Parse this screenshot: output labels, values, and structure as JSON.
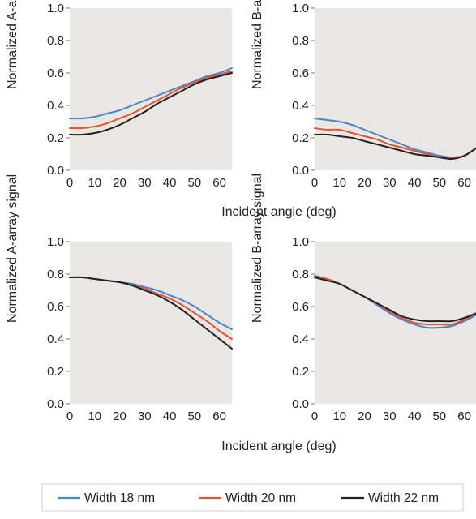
{
  "colors": {
    "plot_background": "#e9e7e4",
    "width_18": "#4a86c8",
    "width_20": "#e8532f",
    "width_22": "#222222"
  },
  "legend": {
    "items": [
      {
        "label": "Width 18 nm",
        "color": "#4a86c8"
      },
      {
        "label": "Width 20 nm",
        "color": "#e8532f"
      },
      {
        "label": "Width 22 nm",
        "color": "#222222"
      }
    ]
  },
  "chart_data": [
    {
      "id": "top-left",
      "type": "line",
      "ylabel": "Normalized A-array signal",
      "xlabel": "",
      "xticks": [
        0,
        10,
        20,
        30,
        40,
        50,
        60
      ],
      "yticks": [
        0.0,
        0.2,
        0.4,
        0.6,
        0.8,
        1.0
      ],
      "ytick_labels": [
        "0.0",
        "0.2",
        "0.4",
        "0.6",
        "0.8",
        "1.0"
      ],
      "xlim": [
        0,
        65
      ],
      "ylim": [
        0,
        1
      ],
      "grid": false,
      "x": [
        0,
        5,
        10,
        15,
        20,
        25,
        30,
        35,
        40,
        45,
        50,
        55,
        60,
        65
      ],
      "series": [
        {
          "name": "Width 18 nm",
          "values": [
            0.32,
            0.32,
            0.33,
            0.35,
            0.37,
            0.4,
            0.43,
            0.46,
            0.49,
            0.52,
            0.55,
            0.58,
            0.6,
            0.63
          ]
        },
        {
          "name": "Width 20 nm",
          "values": [
            0.26,
            0.26,
            0.27,
            0.29,
            0.32,
            0.35,
            0.39,
            0.43,
            0.47,
            0.51,
            0.54,
            0.57,
            0.59,
            0.61
          ]
        },
        {
          "name": "Width 22 nm",
          "values": [
            0.22,
            0.22,
            0.23,
            0.25,
            0.28,
            0.32,
            0.36,
            0.41,
            0.45,
            0.49,
            0.53,
            0.56,
            0.58,
            0.6
          ]
        }
      ]
    },
    {
      "id": "top-right",
      "type": "line",
      "ylabel": "Normalized B-array signal",
      "xlabel": "",
      "xticks": [
        0,
        10,
        20,
        30,
        40,
        50,
        60
      ],
      "yticks": [
        0.0,
        0.2,
        0.4,
        0.6,
        0.8,
        1.0
      ],
      "ytick_labels": [
        "0.0",
        "0.2",
        "0.4",
        "0.6",
        "0.8",
        "1.0"
      ],
      "xlim": [
        0,
        65
      ],
      "ylim": [
        0,
        1
      ],
      "grid": false,
      "x": [
        0,
        5,
        10,
        15,
        20,
        25,
        30,
        35,
        40,
        45,
        50,
        55,
        60,
        65
      ],
      "series": [
        {
          "name": "Width 18 nm",
          "values": [
            0.32,
            0.31,
            0.3,
            0.28,
            0.25,
            0.22,
            0.19,
            0.16,
            0.13,
            0.11,
            0.09,
            0.08,
            0.09,
            0.14
          ]
        },
        {
          "name": "Width 20 nm",
          "values": [
            0.26,
            0.25,
            0.25,
            0.23,
            0.21,
            0.19,
            0.16,
            0.14,
            0.12,
            0.1,
            0.08,
            0.08,
            0.09,
            0.14
          ]
        },
        {
          "name": "Width 22 nm",
          "values": [
            0.22,
            0.22,
            0.21,
            0.2,
            0.18,
            0.16,
            0.14,
            0.12,
            0.1,
            0.09,
            0.08,
            0.07,
            0.09,
            0.14
          ]
        }
      ]
    },
    {
      "id": "bottom-left",
      "type": "line",
      "ylabel": "Normalized A-array signal",
      "xlabel": "Incident angle (deg)",
      "xticks": [
        0,
        10,
        20,
        30,
        40,
        50,
        60
      ],
      "yticks": [
        0.0,
        0.2,
        0.4,
        0.6,
        0.8,
        1.0
      ],
      "ytick_labels": [
        "0.0",
        "0.2",
        "0.4",
        "0.6",
        "0.8",
        "1.0"
      ],
      "xlim": [
        0,
        65
      ],
      "ylim": [
        0,
        1
      ],
      "grid": false,
      "x": [
        0,
        5,
        10,
        15,
        20,
        25,
        30,
        35,
        40,
        45,
        50,
        55,
        60,
        65
      ],
      "series": [
        {
          "name": "Width 18 nm",
          "values": [
            0.78,
            0.78,
            0.77,
            0.76,
            0.75,
            0.74,
            0.72,
            0.7,
            0.67,
            0.64,
            0.6,
            0.55,
            0.5,
            0.46
          ]
        },
        {
          "name": "Width 20 nm",
          "values": [
            0.78,
            0.78,
            0.77,
            0.76,
            0.75,
            0.73,
            0.71,
            0.68,
            0.65,
            0.61,
            0.56,
            0.51,
            0.45,
            0.4
          ]
        },
        {
          "name": "Width 22 nm",
          "values": [
            0.78,
            0.78,
            0.77,
            0.76,
            0.75,
            0.73,
            0.7,
            0.67,
            0.63,
            0.58,
            0.52,
            0.46,
            0.4,
            0.34
          ]
        }
      ]
    },
    {
      "id": "bottom-right",
      "type": "line",
      "ylabel": "Normalized B-array signal",
      "xlabel": "Incident angle (deg)",
      "xticks": [
        0,
        10,
        20,
        30,
        40,
        50,
        60
      ],
      "yticks": [
        0.0,
        0.2,
        0.4,
        0.6,
        0.8,
        1.0
      ],
      "ytick_labels": [
        "0.0",
        "0.2",
        "0.4",
        "0.6",
        "0.8",
        "1.0"
      ],
      "xlim": [
        0,
        65
      ],
      "ylim": [
        0,
        1
      ],
      "grid": false,
      "x": [
        0,
        5,
        10,
        15,
        20,
        25,
        30,
        35,
        40,
        45,
        50,
        55,
        60,
        65
      ],
      "series": [
        {
          "name": "Width 18 nm",
          "values": [
            0.79,
            0.77,
            0.74,
            0.7,
            0.66,
            0.61,
            0.56,
            0.52,
            0.49,
            0.47,
            0.47,
            0.48,
            0.51,
            0.55
          ]
        },
        {
          "name": "Width 20 nm",
          "values": [
            0.78,
            0.77,
            0.74,
            0.7,
            0.66,
            0.62,
            0.57,
            0.53,
            0.5,
            0.49,
            0.49,
            0.49,
            0.52,
            0.56
          ]
        },
        {
          "name": "Width 22 nm",
          "values": [
            0.78,
            0.76,
            0.74,
            0.7,
            0.66,
            0.62,
            0.58,
            0.54,
            0.52,
            0.51,
            0.51,
            0.51,
            0.53,
            0.56
          ]
        }
      ]
    }
  ]
}
